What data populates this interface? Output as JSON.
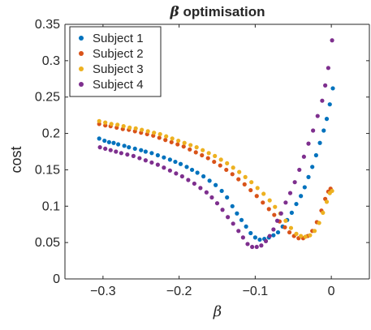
{
  "chart_data": {
    "type": "scatter",
    "title_symbol": "β",
    "title_text": " optimisation",
    "xlabel": "β",
    "ylabel": "cost",
    "xlim": [
      -0.35,
      0.05
    ],
    "ylim": [
      0,
      0.35
    ],
    "xticks": [
      -0.3,
      -0.2,
      -0.1,
      0
    ],
    "xtick_labels": [
      "−0.3",
      "−0.2",
      "−0.1",
      "0"
    ],
    "yticks": [
      0,
      0.05,
      0.1,
      0.15,
      0.2,
      0.25,
      0.3,
      0.35
    ],
    "ytick_labels": [
      "0",
      "0.05",
      "0.1",
      "0.15",
      "0.2",
      "0.25",
      "0.3",
      "0.35"
    ],
    "grid": false,
    "legend_position": "top-left",
    "series": [
      {
        "name": "Subject 1",
        "color": "#0072BD",
        "points": [
          [
            -0.305,
            0.193
          ],
          [
            -0.298,
            0.19
          ],
          [
            -0.292,
            0.188
          ],
          [
            -0.286,
            0.187
          ],
          [
            -0.28,
            0.185
          ],
          [
            -0.272,
            0.183
          ],
          [
            -0.266,
            0.181
          ],
          [
            -0.258,
            0.179
          ],
          [
            -0.25,
            0.177
          ],
          [
            -0.244,
            0.175
          ],
          [
            -0.236,
            0.173
          ],
          [
            -0.228,
            0.17
          ],
          [
            -0.22,
            0.167
          ],
          [
            -0.212,
            0.164
          ],
          [
            -0.205,
            0.161
          ],
          [
            -0.198,
            0.158
          ],
          [
            -0.19,
            0.154
          ],
          [
            -0.183,
            0.15
          ],
          [
            -0.176,
            0.146
          ],
          [
            -0.168,
            0.141
          ],
          [
            -0.16,
            0.135
          ],
          [
            -0.152,
            0.129
          ],
          [
            -0.144,
            0.121
          ],
          [
            -0.137,
            0.112
          ],
          [
            -0.13,
            0.1
          ],
          [
            -0.124,
            0.09
          ],
          [
            -0.118,
            0.081
          ],
          [
            -0.112,
            0.072
          ],
          [
            -0.106,
            0.063
          ],
          [
            -0.1,
            0.057
          ],
          [
            -0.094,
            0.054
          ],
          [
            -0.088,
            0.055
          ],
          [
            -0.082,
            0.057
          ],
          [
            -0.076,
            0.06
          ],
          [
            -0.07,
            0.064
          ],
          [
            -0.064,
            0.072
          ],
          [
            -0.058,
            0.081
          ],
          [
            -0.052,
            0.091
          ],
          [
            -0.046,
            0.103
          ],
          [
            -0.04,
            0.114
          ],
          [
            -0.035,
            0.126
          ],
          [
            -0.03,
            0.14
          ],
          [
            -0.025,
            0.154
          ],
          [
            -0.02,
            0.17
          ],
          [
            -0.015,
            0.187
          ],
          [
            -0.01,
            0.204
          ],
          [
            -0.006,
            0.22
          ],
          [
            -0.002,
            0.24
          ],
          [
            0.002,
            0.262
          ]
        ]
      },
      {
        "name": "Subject 2",
        "color": "#D95319",
        "points": [
          [
            -0.305,
            0.213
          ],
          [
            -0.297,
            0.211
          ],
          [
            -0.29,
            0.21
          ],
          [
            -0.282,
            0.208
          ],
          [
            -0.274,
            0.206
          ],
          [
            -0.266,
            0.205
          ],
          [
            -0.258,
            0.203
          ],
          [
            -0.25,
            0.201
          ],
          [
            -0.242,
            0.199
          ],
          [
            -0.234,
            0.197
          ],
          [
            -0.226,
            0.194
          ],
          [
            -0.218,
            0.191
          ],
          [
            -0.21,
            0.188
          ],
          [
            -0.202,
            0.185
          ],
          [
            -0.194,
            0.182
          ],
          [
            -0.186,
            0.178
          ],
          [
            -0.178,
            0.174
          ],
          [
            -0.17,
            0.17
          ],
          [
            -0.162,
            0.166
          ],
          [
            -0.154,
            0.161
          ],
          [
            -0.146,
            0.156
          ],
          [
            -0.138,
            0.15
          ],
          [
            -0.13,
            0.144
          ],
          [
            -0.122,
            0.137
          ],
          [
            -0.114,
            0.13
          ],
          [
            -0.106,
            0.122
          ],
          [
            -0.098,
            0.114
          ],
          [
            -0.09,
            0.105
          ],
          [
            -0.082,
            0.096
          ],
          [
            -0.075,
            0.088
          ],
          [
            -0.068,
            0.079
          ],
          [
            -0.061,
            0.071
          ],
          [
            -0.055,
            0.064
          ],
          [
            -0.049,
            0.059
          ],
          [
            -0.043,
            0.056
          ],
          [
            -0.037,
            0.056
          ],
          [
            -0.031,
            0.059
          ],
          [
            -0.025,
            0.066
          ],
          [
            -0.019,
            0.078
          ],
          [
            -0.013,
            0.094
          ],
          [
            -0.008,
            0.11
          ],
          [
            -0.004,
            0.12
          ],
          [
            -0.001,
            0.124
          ]
        ]
      },
      {
        "name": "Subject 3",
        "color": "#EDB120",
        "points": [
          [
            -0.305,
            0.217
          ],
          [
            -0.297,
            0.215
          ],
          [
            -0.289,
            0.213
          ],
          [
            -0.281,
            0.212
          ],
          [
            -0.273,
            0.21
          ],
          [
            -0.265,
            0.208
          ],
          [
            -0.257,
            0.207
          ],
          [
            -0.249,
            0.205
          ],
          [
            -0.241,
            0.203
          ],
          [
            -0.233,
            0.201
          ],
          [
            -0.225,
            0.199
          ],
          [
            -0.217,
            0.196
          ],
          [
            -0.209,
            0.193
          ],
          [
            -0.201,
            0.19
          ],
          [
            -0.193,
            0.187
          ],
          [
            -0.185,
            0.184
          ],
          [
            -0.177,
            0.181
          ],
          [
            -0.169,
            0.177
          ],
          [
            -0.161,
            0.173
          ],
          [
            -0.153,
            0.169
          ],
          [
            -0.145,
            0.164
          ],
          [
            -0.137,
            0.159
          ],
          [
            -0.129,
            0.153
          ],
          [
            -0.121,
            0.147
          ],
          [
            -0.113,
            0.14
          ],
          [
            -0.105,
            0.133
          ],
          [
            -0.097,
            0.125
          ],
          [
            -0.089,
            0.117
          ],
          [
            -0.081,
            0.108
          ],
          [
            -0.074,
            0.099
          ],
          [
            -0.067,
            0.09
          ],
          [
            -0.06,
            0.08
          ],
          [
            -0.053,
            0.07
          ],
          [
            -0.046,
            0.062
          ],
          [
            -0.04,
            0.059
          ],
          [
            -0.034,
            0.058
          ],
          [
            -0.028,
            0.06
          ],
          [
            -0.022,
            0.066
          ],
          [
            -0.016,
            0.077
          ],
          [
            -0.011,
            0.091
          ],
          [
            -0.006,
            0.106
          ],
          [
            -0.002,
            0.118
          ],
          [
            0.001,
            0.121
          ]
        ]
      },
      {
        "name": "Subject 4",
        "color": "#7E2F8E",
        "points": [
          [
            -0.304,
            0.181
          ],
          [
            -0.297,
            0.179
          ],
          [
            -0.29,
            0.177
          ],
          [
            -0.283,
            0.175
          ],
          [
            -0.276,
            0.173
          ],
          [
            -0.268,
            0.171
          ],
          [
            -0.26,
            0.169
          ],
          [
            -0.252,
            0.166
          ],
          [
            -0.244,
            0.163
          ],
          [
            -0.236,
            0.16
          ],
          [
            -0.228,
            0.157
          ],
          [
            -0.22,
            0.153
          ],
          [
            -0.212,
            0.149
          ],
          [
            -0.204,
            0.145
          ],
          [
            -0.196,
            0.141
          ],
          [
            -0.188,
            0.136
          ],
          [
            -0.18,
            0.131
          ],
          [
            -0.172,
            0.125
          ],
          [
            -0.164,
            0.119
          ],
          [
            -0.157,
            0.112
          ],
          [
            -0.15,
            0.104
          ],
          [
            -0.143,
            0.095
          ],
          [
            -0.136,
            0.085
          ],
          [
            -0.129,
            0.076
          ],
          [
            -0.122,
            0.066
          ],
          [
            -0.116,
            0.057
          ],
          [
            -0.11,
            0.048
          ],
          [
            -0.104,
            0.044
          ],
          [
            -0.098,
            0.044
          ],
          [
            -0.092,
            0.046
          ],
          [
            -0.086,
            0.052
          ],
          [
            -0.081,
            0.059
          ],
          [
            -0.076,
            0.068
          ],
          [
            -0.071,
            0.08
          ],
          [
            -0.066,
            0.09
          ],
          [
            -0.06,
            0.105
          ],
          [
            -0.054,
            0.118
          ],
          [
            -0.048,
            0.133
          ],
          [
            -0.042,
            0.15
          ],
          [
            -0.036,
            0.168
          ],
          [
            -0.03,
            0.186
          ],
          [
            -0.024,
            0.204
          ],
          [
            -0.018,
            0.224
          ],
          [
            -0.012,
            0.245
          ],
          [
            -0.008,
            0.266
          ],
          [
            -0.004,
            0.29
          ],
          [
            0.001,
            0.328
          ]
        ]
      }
    ]
  }
}
